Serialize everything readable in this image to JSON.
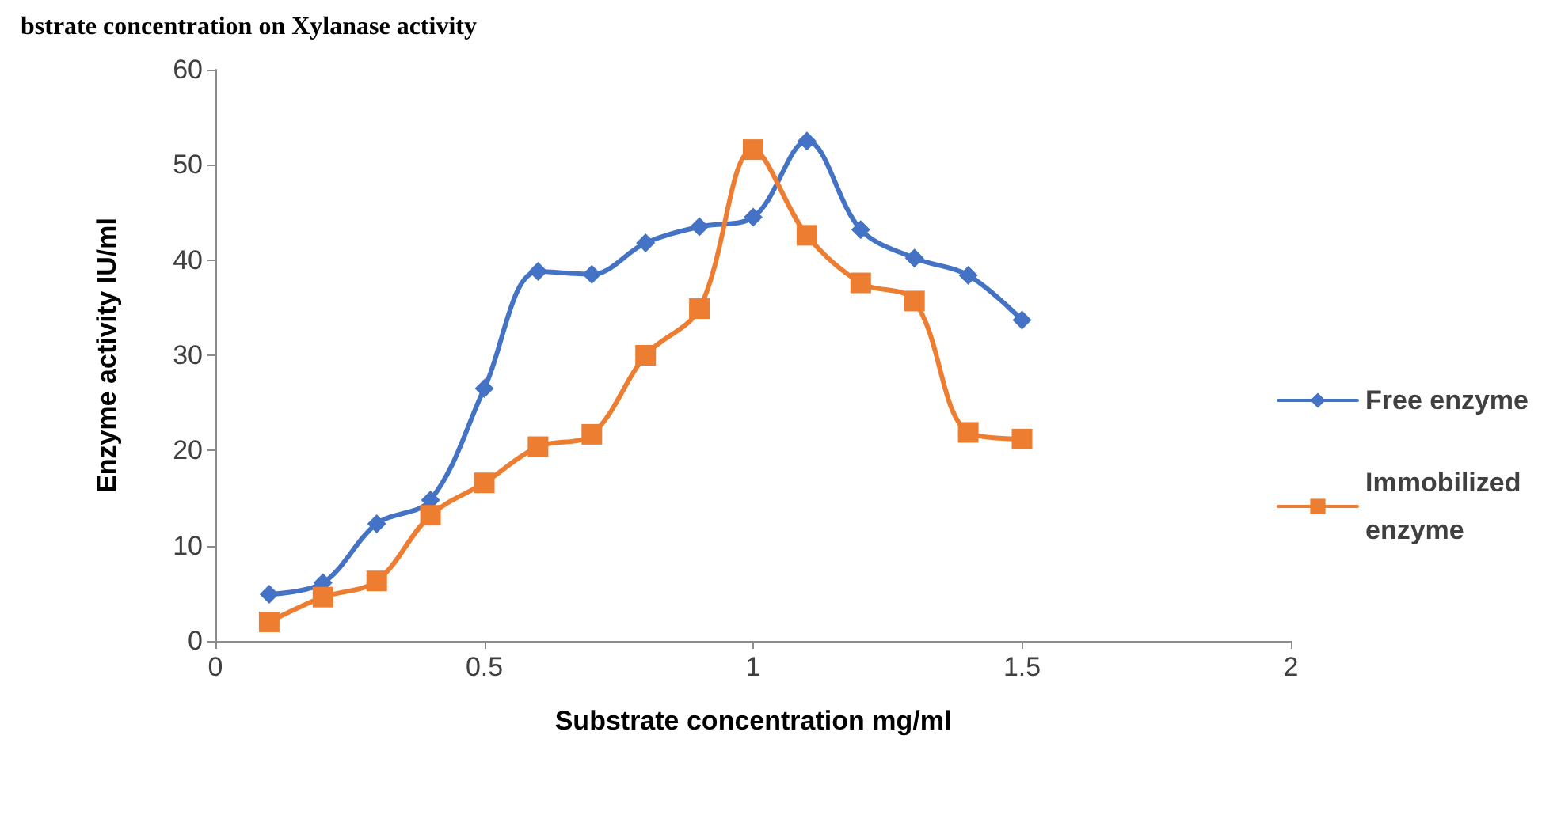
{
  "chart_data": {
    "type": "line",
    "title": "bstrate concentration on Xylanase activity",
    "xlabel": "Substrate concentration mg/ml",
    "ylabel": "Enzyme activity IU/ml",
    "x": [
      0.1,
      0.2,
      0.3,
      0.4,
      0.5,
      0.6,
      0.7,
      0.8,
      0.9,
      1.0,
      1.1,
      1.2,
      1.3,
      1.4,
      1.5
    ],
    "series": [
      {
        "name": "Free enzyme",
        "color": "#4472c4",
        "marker": "diamond",
        "values": [
          4.9,
          6.1,
          12.3,
          14.8,
          26.5,
          38.8,
          38.5,
          41.8,
          43.5,
          44.5,
          52.5,
          43.2,
          40.2,
          38.4,
          33.7
        ]
      },
      {
        "name": "Immobilized enzyme",
        "color": "#ed7d31",
        "marker": "square",
        "values": [
          2.0,
          4.6,
          6.3,
          13.2,
          16.6,
          20.4,
          21.7,
          30.0,
          34.9,
          51.6,
          42.6,
          37.6,
          35.7,
          21.9,
          21.2
        ]
      }
    ],
    "xlim": [
      0,
      2
    ],
    "xticks": [
      0,
      0.5,
      1,
      1.5,
      2
    ],
    "ylim": [
      0,
      60
    ],
    "yticks": [
      0,
      10,
      20,
      30,
      40,
      50,
      60
    ],
    "grid": false,
    "legend": "right"
  }
}
